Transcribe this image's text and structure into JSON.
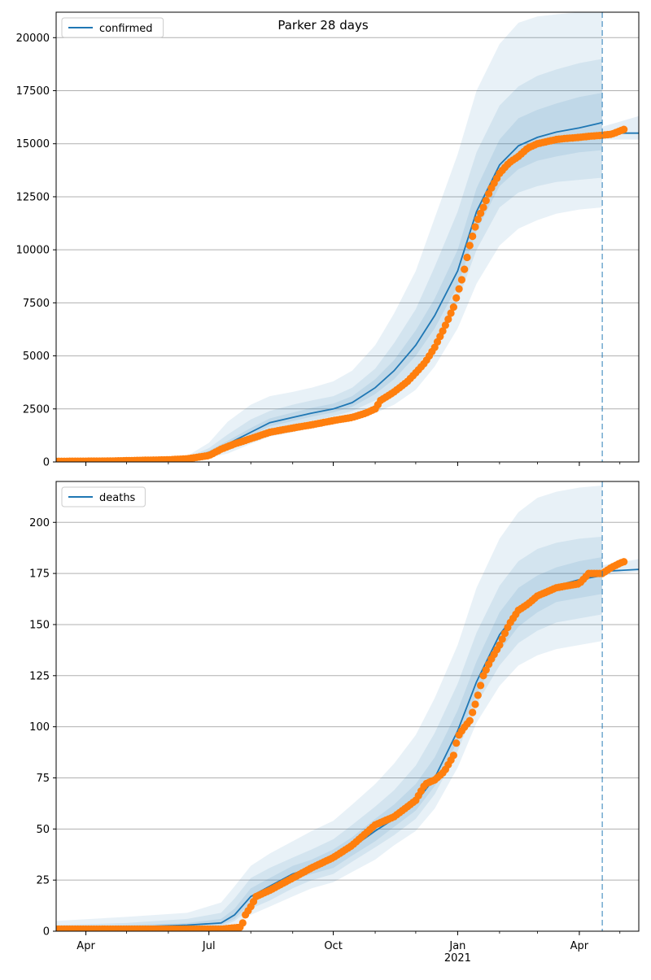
{
  "figure": {
    "title": "Parker 28 days"
  },
  "x_axis": {
    "ticks": [
      {
        "date": "2020-04-01",
        "label": "Apr"
      },
      {
        "date": "2020-07-01",
        "label": "Jul"
      },
      {
        "date": "2020-10-01",
        "label": "Oct"
      },
      {
        "date": "2021-01-01",
        "label": "Jan"
      },
      {
        "date": "2021-04-01",
        "label": "Apr"
      }
    ],
    "year_label": "2021",
    "xlim": [
      "2020-03-10",
      "2021-05-15"
    ]
  },
  "chart_data": [
    {
      "type": "line",
      "legend": "confirmed",
      "legend_position": "top-left",
      "grid": "y",
      "ylim": [
        0,
        21200
      ],
      "yticks": [
        0,
        2500,
        5000,
        7500,
        10000,
        12500,
        15000,
        17500,
        20000
      ],
      "forecast_marker_date": "2021-04-18",
      "colors": {
        "model": "#1f77b4",
        "observed": "#ff7f0e",
        "band": "#1f77b4"
      },
      "model": {
        "x": [
          "2020-03-10",
          "2020-06-15",
          "2020-07-01",
          "2020-07-15",
          "2020-08-01",
          "2020-08-15",
          "2020-09-01",
          "2020-09-15",
          "2020-10-01",
          "2020-10-15",
          "2020-11-01",
          "2020-11-15",
          "2020-12-01",
          "2020-12-15",
          "2021-01-01",
          "2021-01-15",
          "2021-02-01",
          "2021-02-15",
          "2021-03-01",
          "2021-03-15",
          "2021-04-01",
          "2021-04-15",
          "2021-04-18"
        ],
        "y": [
          30,
          150,
          450,
          850,
          1400,
          1850,
          2100,
          2300,
          2500,
          2800,
          3500,
          4300,
          5500,
          6900,
          9000,
          11800,
          14000,
          14900,
          15300,
          15550,
          15750,
          15950,
          16000
        ]
      },
      "model_after": {
        "x": [
          "2021-04-18",
          "2021-04-25",
          "2021-05-01",
          "2021-05-15"
        ],
        "y": [
          15400,
          15450,
          15500,
          15500
        ]
      },
      "bands": [
        {
          "x": [
            "2020-03-10",
            "2020-06-15",
            "2020-07-01",
            "2020-07-15",
            "2020-08-01",
            "2020-08-15",
            "2020-09-01",
            "2020-09-15",
            "2020-10-01",
            "2020-10-15",
            "2020-11-01",
            "2020-11-15",
            "2020-12-01",
            "2020-12-15",
            "2021-01-01",
            "2021-01-15",
            "2021-02-01",
            "2021-02-15",
            "2021-03-01",
            "2021-03-15",
            "2021-04-01",
            "2021-04-18"
          ],
          "lower": [
            0,
            80,
            200,
            400,
            850,
            1200,
            1400,
            1600,
            1800,
            2000,
            2300,
            2700,
            3400,
            4500,
            6300,
            8400,
            10200,
            11000,
            11400,
            11700,
            11900,
            12000
          ],
          "upper": [
            120,
            280,
            900,
            1900,
            2700,
            3100,
            3300,
            3500,
            3800,
            4300,
            5500,
            7000,
            9000,
            11500,
            14500,
            17500,
            19700,
            20700,
            21000,
            21100,
            21200,
            21200
          ]
        },
        {
          "x": [
            "2020-03-10",
            "2020-06-15",
            "2020-07-01",
            "2020-07-15",
            "2020-08-01",
            "2020-08-15",
            "2020-09-01",
            "2020-09-15",
            "2020-10-01",
            "2020-10-15",
            "2020-11-01",
            "2020-11-15",
            "2020-12-01",
            "2020-12-15",
            "2021-01-01",
            "2021-01-15",
            "2021-02-01",
            "2021-02-15",
            "2021-03-01",
            "2021-03-15",
            "2021-04-01",
            "2021-04-18"
          ],
          "lower": [
            10,
            110,
            300,
            600,
            1100,
            1500,
            1750,
            1950,
            2150,
            2400,
            2900,
            3500,
            4400,
            5700,
            7600,
            10000,
            12000,
            12700,
            13000,
            13200,
            13300,
            13400
          ],
          "upper": [
            70,
            210,
            650,
            1300,
            2000,
            2400,
            2700,
            2900,
            3100,
            3500,
            4400,
            5600,
            7200,
            9200,
            11800,
            14600,
            16800,
            17700,
            18200,
            18500,
            18800,
            19000
          ]
        },
        {
          "x": [
            "2020-03-10",
            "2020-06-15",
            "2020-07-01",
            "2020-07-15",
            "2020-08-01",
            "2020-08-15",
            "2020-09-01",
            "2020-09-15",
            "2020-10-01",
            "2020-10-15",
            "2020-11-01",
            "2020-11-15",
            "2020-12-01",
            "2020-12-15",
            "2021-01-01",
            "2021-01-15",
            "2021-02-01",
            "2021-02-15",
            "2021-03-01",
            "2021-03-15",
            "2021-04-01",
            "2021-04-18"
          ],
          "lower": [
            20,
            130,
            380,
            730,
            1250,
            1680,
            1930,
            2130,
            2330,
            2600,
            3200,
            3900,
            5000,
            6300,
            8300,
            10900,
            13000,
            13800,
            14200,
            14400,
            14600,
            14700
          ],
          "upper": [
            45,
            175,
            530,
            1000,
            1600,
            2050,
            2330,
            2550,
            2750,
            3100,
            3900,
            4800,
            6200,
            7700,
            10000,
            12900,
            15200,
            16200,
            16600,
            16900,
            17200,
            17400
          ]
        }
      ],
      "band_after": {
        "x": [
          "2021-04-18",
          "2021-05-15"
        ],
        "lower": [
          15200,
          15200
        ],
        "upper": [
          15800,
          16300
        ]
      },
      "observed": {
        "x": [
          "2020-03-10",
          "2020-04-15",
          "2020-05-01",
          "2020-05-15",
          "2020-06-01",
          "2020-06-15",
          "2020-07-01",
          "2020-07-10",
          "2020-07-20",
          "2020-08-01",
          "2020-08-15",
          "2020-09-01",
          "2020-09-15",
          "2020-10-01",
          "2020-10-15",
          "2020-10-25",
          "2020-11-01",
          "2020-11-05",
          "2020-11-15",
          "2020-11-25",
          "2020-12-01",
          "2020-12-08",
          "2020-12-15",
          "2020-12-22",
          "2020-12-29",
          "2021-01-05",
          "2021-01-10",
          "2021-01-15",
          "2021-01-20",
          "2021-01-25",
          "2021-02-01",
          "2021-02-08",
          "2021-02-15",
          "2021-02-22",
          "2021-03-01",
          "2021-03-08",
          "2021-03-15",
          "2021-03-22",
          "2021-04-01",
          "2021-04-08",
          "2021-04-18",
          "2021-04-25",
          "2021-05-01",
          "2021-05-05"
        ],
        "y": [
          30,
          40,
          60,
          80,
          100,
          150,
          300,
          600,
          850,
          1100,
          1400,
          1600,
          1750,
          1950,
          2100,
          2300,
          2500,
          2900,
          3300,
          3800,
          4200,
          4700,
          5400,
          6300,
          7300,
          8800,
          10200,
          11300,
          12000,
          12800,
          13600,
          14100,
          14400,
          14800,
          15000,
          15100,
          15200,
          15250,
          15300,
          15350,
          15400,
          15450,
          15600,
          15700
        ]
      }
    },
    {
      "type": "line",
      "legend": "deaths",
      "legend_position": "top-left",
      "grid": "y",
      "ylim": [
        0,
        220
      ],
      "yticks": [
        0,
        25,
        50,
        75,
        100,
        125,
        150,
        175,
        200
      ],
      "forecast_marker_date": "2021-04-18",
      "colors": {
        "model": "#1f77b4",
        "observed": "#ff7f0e",
        "band": "#1f77b4"
      },
      "model": {
        "x": [
          "2020-03-10",
          "2020-05-01",
          "2020-06-15",
          "2020-07-10",
          "2020-07-20",
          "2020-08-01",
          "2020-08-15",
          "2020-09-01",
          "2020-09-15",
          "2020-10-01",
          "2020-10-15",
          "2020-11-01",
          "2020-11-15",
          "2020-12-01",
          "2020-12-15",
          "2021-01-01",
          "2021-01-15",
          "2021-02-01",
          "2021-02-15",
          "2021-03-01",
          "2021-03-15",
          "2021-04-01",
          "2021-04-18"
        ],
        "y": [
          1,
          2,
          3,
          4,
          8,
          17,
          22,
          28,
          31,
          35,
          41,
          49,
          55,
          63,
          75,
          98,
          122,
          145,
          157,
          164,
          169,
          172,
          174
        ]
      },
      "model_after": {
        "x": [
          "2021-04-18",
          "2021-05-15"
        ],
        "y": [
          176,
          177
        ]
      },
      "bands": [
        {
          "x": [
            "2020-03-10",
            "2020-05-01",
            "2020-06-15",
            "2020-07-10",
            "2020-07-20",
            "2020-08-01",
            "2020-08-15",
            "2020-09-01",
            "2020-09-15",
            "2020-10-01",
            "2020-10-15",
            "2020-11-01",
            "2020-11-15",
            "2020-12-01",
            "2020-12-15",
            "2021-01-01",
            "2021-01-15",
            "2021-02-01",
            "2021-02-15",
            "2021-03-01",
            "2021-03-15",
            "2021-04-01",
            "2021-04-18"
          ],
          "lower": [
            0,
            0,
            0,
            1,
            3,
            8,
            12,
            17,
            21,
            24,
            29,
            35,
            42,
            49,
            60,
            80,
            102,
            120,
            130,
            135,
            138,
            140,
            142
          ],
          "upper": [
            5,
            7,
            9,
            14,
            22,
            32,
            38,
            44,
            49,
            54,
            62,
            72,
            82,
            96,
            114,
            140,
            168,
            192,
            205,
            212,
            215,
            217,
            218
          ]
        },
        {
          "x": [
            "2020-03-10",
            "2020-05-01",
            "2020-06-15",
            "2020-07-10",
            "2020-07-20",
            "2020-08-01",
            "2020-08-15",
            "2020-09-01",
            "2020-09-15",
            "2020-10-01",
            "2020-10-15",
            "2020-11-01",
            "2020-11-15",
            "2020-12-01",
            "2020-12-15",
            "2021-01-01",
            "2021-01-15",
            "2021-02-01",
            "2021-02-15",
            "2021-03-01",
            "2021-03-15",
            "2021-04-01",
            "2021-04-18"
          ],
          "lower": [
            0,
            1,
            1,
            2,
            5,
            11,
            15,
            21,
            25,
            28,
            34,
            41,
            47,
            55,
            67,
            88,
            111,
            130,
            141,
            147,
            151,
            153,
            155
          ],
          "upper": [
            3,
            4,
            6,
            9,
            16,
            26,
            31,
            36,
            40,
            45,
            52,
            61,
            69,
            81,
            97,
            121,
            146,
            169,
            181,
            187,
            190,
            192,
            193
          ]
        },
        {
          "x": [
            "2020-03-10",
            "2020-05-01",
            "2020-06-15",
            "2020-07-10",
            "2020-07-20",
            "2020-08-01",
            "2020-08-15",
            "2020-09-01",
            "2020-09-15",
            "2020-10-01",
            "2020-10-15",
            "2020-11-01",
            "2020-11-15",
            "2020-12-01",
            "2020-12-15",
            "2021-01-01",
            "2021-01-15",
            "2021-02-01",
            "2021-02-15",
            "2021-03-01",
            "2021-03-15",
            "2021-04-01",
            "2021-04-18"
          ],
          "lower": [
            0,
            1,
            2,
            3,
            6,
            14,
            19,
            25,
            28,
            31,
            37,
            44,
            51,
            59,
            71,
            93,
            116,
            137,
            149,
            156,
            161,
            163,
            165
          ],
          "upper": [
            2,
            3,
            4,
            6,
            11,
            21,
            26,
            32,
            35,
            40,
            46,
            55,
            62,
            72,
            85,
            108,
            132,
            156,
            168,
            174,
            178,
            181,
            183
          ]
        }
      ],
      "band_after": {
        "x": [
          "2021-04-18",
          "2021-05-15"
        ],
        "lower": [
          174,
          176
        ],
        "upper": [
          179,
          182
        ]
      },
      "observed": {
        "x": [
          "2020-03-10",
          "2020-05-01",
          "2020-06-15",
          "2020-07-10",
          "2020-07-25",
          "2020-07-28",
          "2020-08-01",
          "2020-08-05",
          "2020-08-15",
          "2020-09-01",
          "2020-09-15",
          "2020-10-01",
          "2020-10-15",
          "2020-11-01",
          "2020-11-15",
          "2020-12-01",
          "2020-12-08",
          "2020-12-15",
          "2020-12-22",
          "2020-12-29",
          "2021-01-01",
          "2021-01-05",
          "2021-01-10",
          "2021-01-15",
          "2021-01-20",
          "2021-01-25",
          "2021-02-01",
          "2021-02-08",
          "2021-02-15",
          "2021-02-22",
          "2021-03-01",
          "2021-03-15",
          "2021-04-01",
          "2021-04-08",
          "2021-04-18",
          "2021-04-25",
          "2021-05-01",
          "2021-05-05"
        ],
        "y": [
          1,
          1,
          1,
          1,
          2,
          8,
          12,
          17,
          20,
          26,
          31,
          36,
          42,
          52,
          56,
          64,
          72,
          74,
          78,
          86,
          95,
          99,
          103,
          113,
          125,
          132,
          140,
          150,
          157,
          160,
          164,
          168,
          170,
          175,
          175,
          178,
          180,
          181
        ]
      }
    }
  ]
}
